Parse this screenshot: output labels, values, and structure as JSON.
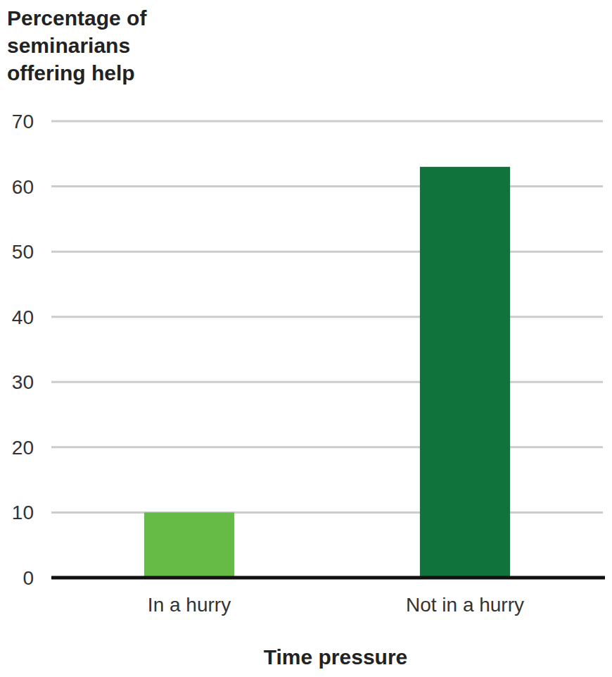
{
  "chart_data": {
    "type": "bar",
    "y_label": "Percentage of seminarians offering help",
    "x_label": "Time pressure",
    "categories": [
      "In a hurry",
      "Not in a hurry"
    ],
    "values": [
      10,
      63
    ],
    "colors": [
      "#66bb46",
      "#10733c"
    ],
    "ylim": [
      0,
      70
    ],
    "yticks": [
      0,
      10,
      20,
      30,
      40,
      50,
      60,
      70
    ],
    "grid": true
  }
}
